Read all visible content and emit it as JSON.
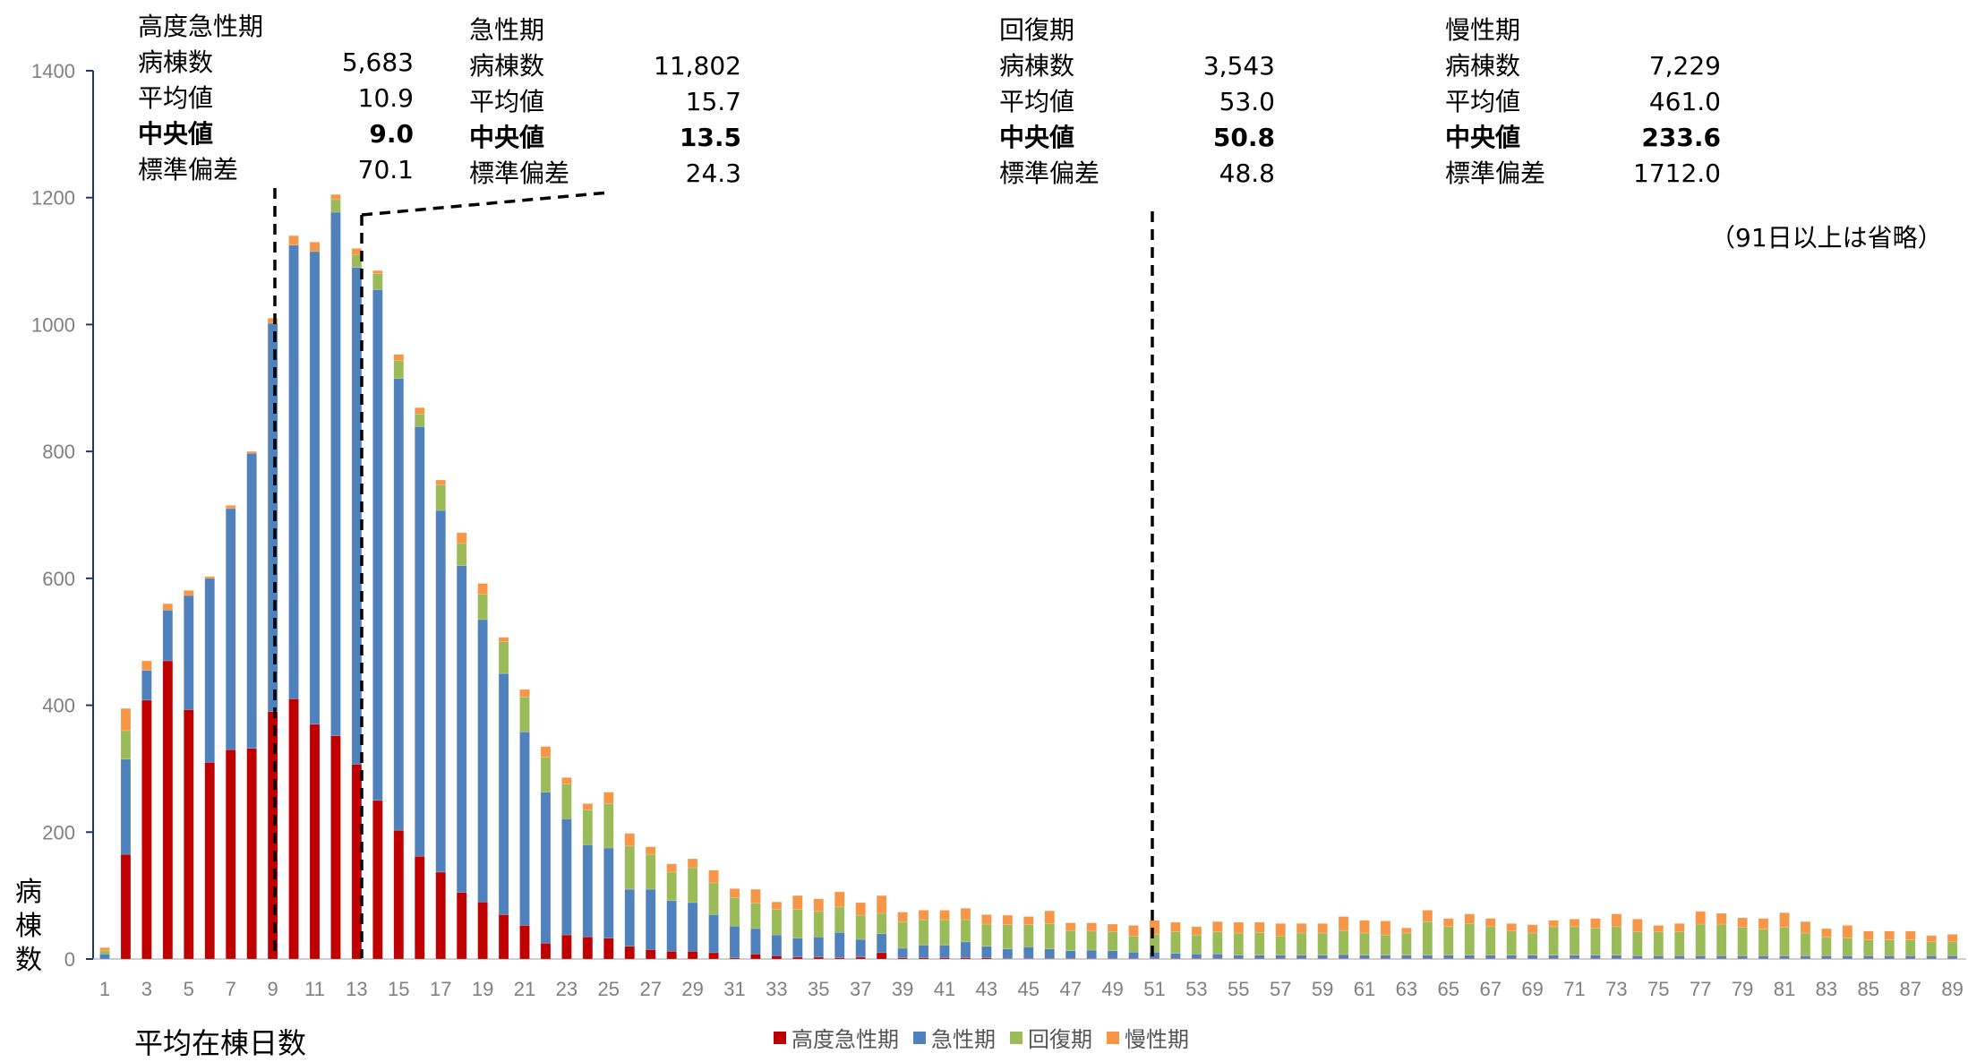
{
  "chart_data": {
    "type": "bar",
    "stacked": true,
    "xlabel": "平均在棟日数",
    "ylabel": "病棟数",
    "ylim": [
      0,
      1400
    ],
    "yticks": [
      0,
      200,
      400,
      600,
      800,
      1000,
      1200,
      1400
    ],
    "x": [
      1,
      2,
      3,
      4,
      5,
      6,
      7,
      8,
      9,
      10,
      11,
      12,
      13,
      14,
      15,
      16,
      17,
      18,
      19,
      20,
      21,
      22,
      23,
      24,
      25,
      26,
      27,
      28,
      29,
      30,
      31,
      32,
      33,
      34,
      35,
      36,
      37,
      38,
      39,
      40,
      41,
      42,
      43,
      44,
      45,
      46,
      47,
      48,
      49,
      50,
      51,
      52,
      53,
      54,
      55,
      56,
      57,
      58,
      59,
      60,
      61,
      62,
      63,
      64,
      65,
      66,
      67,
      68,
      69,
      70,
      71,
      72,
      73,
      74,
      75,
      76,
      77,
      78,
      79,
      80,
      81,
      82,
      83,
      84,
      85,
      86,
      87,
      88,
      89,
      90
    ],
    "xtick_labels": [
      "1",
      "3",
      "5",
      "7",
      "9",
      "11",
      "13",
      "15",
      "17",
      "19",
      "21",
      "23",
      "25",
      "27",
      "29",
      "31",
      "33",
      "35",
      "37",
      "39",
      "41",
      "43",
      "45",
      "47",
      "49",
      "51",
      "53",
      "55",
      "57",
      "59",
      "61",
      "63",
      "65",
      "67",
      "69",
      "71",
      "73",
      "75",
      "77",
      "79",
      "81",
      "83",
      "85",
      "87",
      "89"
    ],
    "series": [
      {
        "name": "高度急性期",
        "color": "#c00000",
        "values": [
          0,
          165,
          408,
          470,
          393,
          310,
          330,
          332,
          390,
          410,
          370,
          352,
          307,
          250,
          203,
          162,
          137,
          105,
          90,
          70,
          53,
          25,
          38,
          35,
          33,
          20,
          15,
          12,
          12,
          10,
          2,
          8,
          5,
          3,
          3,
          2,
          3,
          10,
          2,
          2,
          2,
          2,
          2,
          1,
          1,
          1,
          1,
          1,
          1,
          1,
          1,
          1,
          1,
          1,
          1,
          1,
          1,
          1,
          1,
          1,
          1,
          1,
          1,
          1,
          1,
          1,
          1,
          1,
          1,
          1,
          1,
          1,
          1,
          1,
          1,
          1,
          1,
          1,
          1,
          1,
          1,
          1,
          1,
          1,
          1,
          1,
          1,
          1,
          1,
          1
        ]
      },
      {
        "name": "急性期",
        "color": "#4f81bd",
        "values": [
          8,
          150,
          47,
          80,
          180,
          290,
          380,
          465,
          612,
          715,
          745,
          825,
          783,
          805,
          712,
          677,
          570,
          515,
          445,
          380,
          305,
          238,
          183,
          145,
          142,
          90,
          95,
          80,
          77,
          60,
          50,
          40,
          33,
          30,
          32,
          40,
          28,
          30,
          15,
          20,
          20,
          25,
          18,
          15,
          18,
          15,
          12,
          13,
          12,
          10,
          10,
          8,
          7,
          7,
          5,
          5,
          5,
          5,
          5,
          6,
          5,
          5,
          5,
          5,
          5,
          5,
          5,
          5,
          5,
          5,
          5,
          5,
          5,
          4,
          4,
          4,
          4,
          4,
          4,
          4,
          4,
          4,
          4,
          4,
          4,
          4,
          4,
          4,
          4,
          4
        ]
      },
      {
        "name": "回復期",
        "color": "#9bbb59",
        "values": [
          5,
          45,
          0,
          0,
          0,
          0,
          0,
          0,
          0,
          0,
          0,
          20,
          20,
          25,
          28,
          20,
          40,
          35,
          40,
          50,
          55,
          55,
          55,
          55,
          70,
          68,
          55,
          45,
          55,
          50,
          45,
          40,
          40,
          45,
          40,
          40,
          38,
          32,
          42,
          40,
          40,
          35,
          35,
          38,
          35,
          40,
          32,
          30,
          30,
          25,
          28,
          34,
          30,
          35,
          35,
          36,
          30,
          35,
          35,
          38,
          35,
          32,
          35,
          53,
          45,
          50,
          45,
          38,
          35,
          45,
          45,
          43,
          45,
          38,
          38,
          38,
          50,
          50,
          45,
          42,
          45,
          36,
          30,
          28,
          25,
          25,
          25,
          22,
          22,
          22
        ]
      },
      {
        "name": "慢性期",
        "color": "#f79646",
        "values": [
          5,
          35,
          15,
          10,
          8,
          3,
          5,
          3,
          8,
          15,
          15,
          8,
          10,
          5,
          10,
          10,
          8,
          17,
          17,
          7,
          12,
          17,
          10,
          10,
          18,
          20,
          12,
          13,
          14,
          20,
          14,
          22,
          12,
          22,
          20,
          24,
          20,
          28,
          15,
          15,
          15,
          18,
          15,
          15,
          13,
          20,
          12,
          13,
          12,
          17,
          22,
          15,
          13,
          16,
          17,
          16,
          20,
          15,
          15,
          22,
          20,
          22,
          8,
          18,
          13,
          15,
          13,
          12,
          13,
          10,
          12,
          15,
          20,
          20,
          10,
          13,
          20,
          17,
          15,
          17,
          23,
          18,
          13,
          20,
          14,
          14,
          14,
          10,
          12,
          15
        ]
      }
    ]
  },
  "stats": [
    {
      "title": "高度急性期",
      "rows": [
        {
          "label": "病棟数",
          "value": "5,683"
        },
        {
          "label": "平均値",
          "value": "10.9"
        },
        {
          "label": "中央値",
          "value": "9.0"
        },
        {
          "label": "標準偏差",
          "value": "70.1"
        }
      ]
    },
    {
      "title": "急性期",
      "rows": [
        {
          "label": "病棟数",
          "value": "11,802"
        },
        {
          "label": "平均値",
          "value": "15.7"
        },
        {
          "label": "中央値",
          "value": "13.5"
        },
        {
          "label": "標準偏差",
          "value": "24.3"
        }
      ]
    },
    {
      "title": "回復期",
      "rows": [
        {
          "label": "病棟数",
          "value": "3,543"
        },
        {
          "label": "平均値",
          "value": "53.0"
        },
        {
          "label": "中央値",
          "value": "50.8"
        },
        {
          "label": "標準偏差",
          "value": "48.8"
        }
      ]
    },
    {
      "title": "慢性期",
      "rows": [
        {
          "label": "病棟数",
          "value": "7,229"
        },
        {
          "label": "平均値",
          "value": "461.0"
        },
        {
          "label": "中央値",
          "value": "233.6"
        },
        {
          "label": "標準偏差",
          "value": "1712.0"
        }
      ]
    }
  ],
  "note": "（91日以上は省略）",
  "y_axis_label": "病棟数",
  "x_axis_label": "平均在棟日数",
  "legend": [
    {
      "label": "高度急性期",
      "color": "#c00000"
    },
    {
      "label": "急性期",
      "color": "#4f81bd"
    },
    {
      "label": "回復期",
      "color": "#9bbb59"
    },
    {
      "label": "慢性期",
      "color": "#f79646"
    }
  ]
}
